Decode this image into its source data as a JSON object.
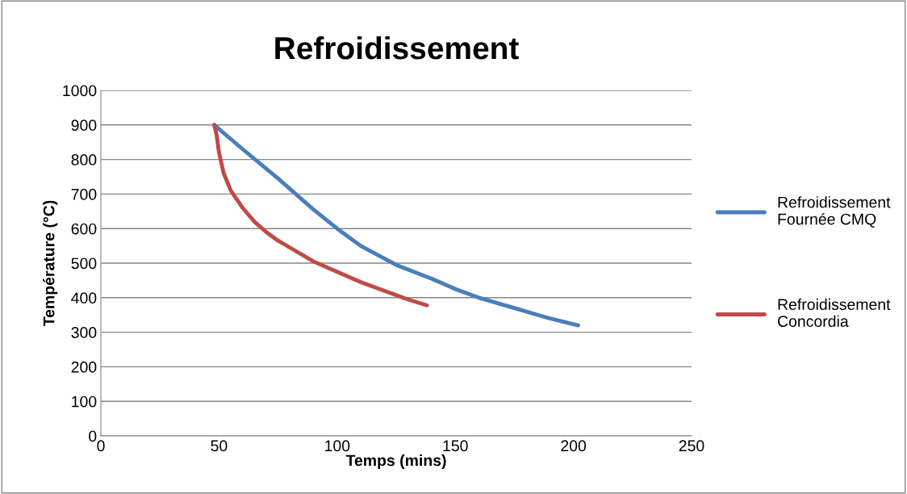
{
  "chart_data": {
    "type": "line",
    "title": "Refroidissement",
    "xlabel": "Temps (mins)",
    "ylabel": "Température (°C)",
    "xlim": [
      0,
      250
    ],
    "xticks": [
      0,
      50,
      100,
      150,
      200,
      250
    ],
    "ylim": [
      0,
      1000
    ],
    "yticks": [
      0,
      100,
      200,
      300,
      400,
      500,
      600,
      700,
      800,
      900,
      1000
    ],
    "grid": "y",
    "legend": "right",
    "marker": "none",
    "line_style": "solid",
    "series": [
      {
        "name": "Refroidissement Fournée CMQ",
        "color": "#4a7ebb",
        "x": [
          48,
          60,
          75,
          90,
          100,
          110,
          125,
          140,
          150,
          160,
          175,
          190,
          202
        ],
        "values": [
          900,
          830,
          745,
          655,
          600,
          550,
          495,
          455,
          425,
          400,
          370,
          340,
          320
        ]
      },
      {
        "name": "Refroidissement Concordia",
        "color": "#be4b48",
        "x": [
          48,
          49,
          50,
          52,
          55,
          60,
          65,
          70,
          75,
          80,
          90,
          100,
          110,
          120,
          130,
          138
        ],
        "values": [
          900,
          870,
          820,
          760,
          710,
          660,
          620,
          590,
          565,
          545,
          505,
          475,
          445,
          420,
          395,
          378
        ]
      }
    ]
  }
}
